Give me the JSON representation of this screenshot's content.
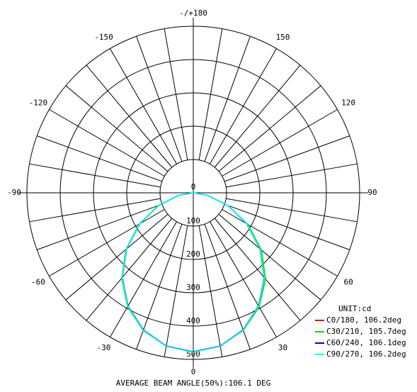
{
  "chart_data": {
    "type": "polar",
    "angles": [
      -90,
      -80,
      -70,
      -60,
      -50,
      -40,
      -30,
      -20,
      -10,
      0,
      10,
      20,
      30,
      40,
      50,
      60,
      70,
      80,
      90
    ],
    "rlim": [
      0,
      500
    ],
    "rticks": [
      0,
      100,
      200,
      300,
      400,
      500
    ],
    "angle_ticks": [
      {
        "value": 180,
        "label": "-/+180"
      },
      150,
      120,
      90,
      60,
      30,
      0,
      -30,
      -60,
      -90,
      -120,
      -150
    ],
    "spoke_step": 10,
    "legend_title": "UNIT:cd",
    "legend": "lower right",
    "caption": "AVERAGE BEAM ANGLE(50%):106.1 DEG",
    "series": [
      {
        "name": "C0/180, 106.2deg",
        "color": "#dd0000",
        "values": [
          0,
          44,
          111,
          186,
          262,
          333,
          393,
          439,
          468,
          478,
          468,
          439,
          393,
          333,
          262,
          186,
          111,
          44,
          0
        ]
      },
      {
        "name": "C30/210, 105.7deg",
        "color": "#00dd00",
        "values": [
          0,
          45,
          112,
          188,
          264,
          335,
          395,
          440,
          468,
          477,
          467,
          440,
          396,
          338,
          268,
          190,
          112,
          44,
          0
        ]
      },
      {
        "name": "C60/240, 106.1deg",
        "color": "#0000cc",
        "values": [
          0,
          44,
          110,
          185,
          261,
          332,
          392,
          438,
          467,
          477,
          467,
          438,
          392,
          332,
          261,
          185,
          110,
          43,
          0
        ]
      },
      {
        "name": "C90/270, 106.2deg",
        "color": "#00ffff",
        "values": [
          0,
          43,
          110,
          186,
          262,
          333,
          393,
          439,
          468,
          478,
          468,
          439,
          393,
          333,
          262,
          186,
          111,
          44,
          0
        ]
      }
    ]
  }
}
